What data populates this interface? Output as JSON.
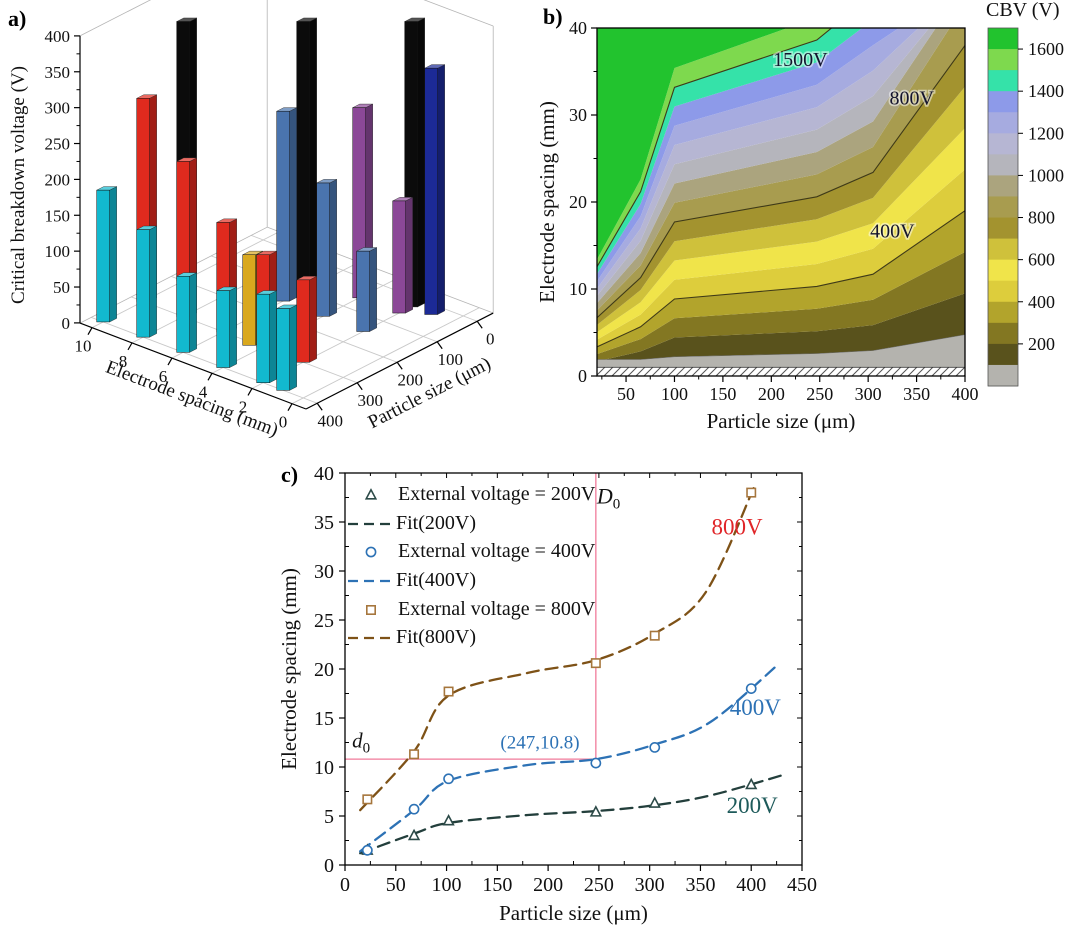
{
  "panels": {
    "a": {
      "label": "a)"
    },
    "b": {
      "label": "b)"
    },
    "c": {
      "label": "c)"
    }
  },
  "chart_data": [
    {
      "type": "bar",
      "subtype": "bar3d",
      "zlabel": "Critical breakdown voltage (V)",
      "xlabel": "Electrode spacing (mm)",
      "ylabel": "Particle size (μm)",
      "zlim": [
        0,
        400
      ],
      "z_ticks": [
        0,
        50,
        100,
        150,
        200,
        250,
        300,
        350,
        400
      ],
      "spacing_ticks": [
        0,
        2,
        4,
        6,
        8,
        10
      ],
      "particle_ticks": [
        400,
        300,
        200,
        100,
        0
      ],
      "series": [
        {
          "name": "bars-cyan",
          "color": "#12b9cf",
          "points": [
            [
              10,
              400,
              185
            ],
            [
              8,
              400,
              130
            ],
            [
              6,
              400,
              65
            ],
            [
              4,
              400,
              45
            ],
            [
              2,
              400,
              40
            ],
            [
              1,
              400,
              20
            ]
          ]
        },
        {
          "name": "bars-red",
          "color": "#df2a1e",
          "points": [
            [
              10,
              300,
              313
            ],
            [
              8,
              300,
              225
            ],
            [
              6,
              300,
              140
            ],
            [
              4,
              300,
              95
            ],
            [
              2,
              300,
              60
            ]
          ]
        },
        {
          "name": "bars-yellow",
          "color": "#d9a81e",
          "points": [
            [
              4.5,
              310,
              95
            ]
          ]
        },
        {
          "name": "bars-black",
          "color": "#0b0b0b",
          "points": [
            [
              10,
              200,
              420
            ],
            [
              6,
              100,
              420
            ],
            [
              2,
              30,
              420
            ]
          ]
        },
        {
          "name": "bars-steelblue",
          "color": "#4a74ae",
          "points": [
            [
              6,
              150,
              295
            ],
            [
              4,
              150,
              195
            ],
            [
              2,
              150,
              100
            ]
          ]
        },
        {
          "name": "bars-purple",
          "color": "#8b4897",
          "points": [
            [
              4,
              60,
              300
            ],
            [
              2,
              60,
              170
            ]
          ]
        },
        {
          "name": "bars-navy",
          "color": "#1c2a96",
          "points": [
            [
              1,
              30,
              355
            ]
          ]
        }
      ]
    },
    {
      "type": "heatmap",
      "subtype": "filled-contour",
      "xlabel": "Particle size (μm)",
      "ylabel": "Electrode spacing (mm)",
      "xlim": [
        20,
        400
      ],
      "ylim": [
        0,
        40
      ],
      "x_ticks": [
        50,
        100,
        150,
        200,
        250,
        300,
        350,
        400
      ],
      "y_ticks": [
        0,
        10,
        20,
        30,
        40
      ],
      "base_contour_800V": [
        [
          20,
          6.7
        ],
        [
          65,
          11.3
        ],
        [
          100,
          17.7
        ],
        [
          247,
          20.6
        ],
        [
          305,
          23.4
        ],
        [
          400,
          38.0
        ]
      ],
      "level_step": 100,
      "band_colors": {
        "0": "#b4b3ae",
        "100": "#59521c",
        "200": "#837722",
        "300": "#b2a42c",
        "400": "#ddcd3c",
        "500": "#f0e44a",
        "600": "#cfc13b",
        "700": "#a3932f",
        "800": "#a89c4f",
        "900": "#aba47e",
        "1000": "#b5b5bc",
        "1100": "#b6b6d3",
        "1200": "#a6abe0",
        "1300": "#8d9ae9",
        "1400": "#35e2a9",
        "1500": "#7ed94e",
        "1600": "#22c32e"
      },
      "labeled_contours": [
        {
          "level": 1500,
          "text": "1500V",
          "x": 230,
          "y": 36.3
        },
        {
          "level": 800,
          "text": "800V",
          "x": 345,
          "y": 31.9
        },
        {
          "level": 400,
          "text": "400V",
          "x": 325,
          "y": 16.6
        }
      ],
      "hatch_band": [
        0,
        1
      ],
      "colorbar": {
        "title": "CBV (V)",
        "max": 1700,
        "min": 0,
        "ticks": [
          200,
          400,
          600,
          800,
          1000,
          1200,
          1400,
          1600
        ]
      }
    },
    {
      "type": "scatter",
      "xlabel": "Particle size (μm)",
      "ylabel": "Electrode spacing (mm)",
      "xlim": [
        0,
        450
      ],
      "ylim": [
        0,
        40
      ],
      "x_ticks": [
        0,
        50,
        100,
        150,
        200,
        250,
        300,
        350,
        400,
        450
      ],
      "y_ticks": [
        0,
        5,
        10,
        15,
        20,
        25,
        30,
        35,
        40
      ],
      "series": [
        {
          "name": "External voltage = 200V",
          "kind": "markers",
          "marker": "triangle",
          "color": "#2c4a48",
          "points": [
            [
              22,
              1.5
            ],
            [
              68,
              3.0
            ],
            [
              102,
              4.5
            ],
            [
              247,
              5.4
            ],
            [
              305,
              6.3
            ],
            [
              400,
              8.2
            ]
          ]
        },
        {
          "name": "Fit(200V)",
          "kind": "fit",
          "color": "#233f3c",
          "points": [
            [
              15,
              1.2
            ],
            [
              68,
              3.2
            ],
            [
              102,
              4.3
            ],
            [
              180,
              5.1
            ],
            [
              247,
              5.5
            ],
            [
              305,
              6.1
            ],
            [
              360,
              7.1
            ],
            [
              432,
              9.2
            ]
          ]
        },
        {
          "name": "External voltage = 400V",
          "kind": "markers",
          "marker": "circle",
          "color": "#2d72b5",
          "points": [
            [
              22,
              1.5
            ],
            [
              68,
              5.7
            ],
            [
              102,
              8.8
            ],
            [
              247,
              10.4
            ],
            [
              305,
              12.0
            ],
            [
              400,
              18.0
            ]
          ]
        },
        {
          "name": "Fit(400V)",
          "kind": "fit",
          "color": "#2d72b5",
          "points": [
            [
              15,
              1.4
            ],
            [
              68,
              5.6
            ],
            [
              102,
              8.6
            ],
            [
              180,
              10.2
            ],
            [
              247,
              10.8
            ],
            [
              305,
              12.3
            ],
            [
              360,
              14.6
            ],
            [
              428,
              20.6
            ]
          ]
        },
        {
          "name": "External voltage = 800V",
          "kind": "markers",
          "marker": "square",
          "color": "#a6763d",
          "points": [
            [
              22,
              6.7
            ],
            [
              68,
              11.3
            ],
            [
              102,
              17.7
            ],
            [
              247,
              20.6
            ],
            [
              305,
              23.4
            ],
            [
              400,
              38.0
            ]
          ]
        },
        {
          "name": "Fit(800V)",
          "kind": "fit",
          "color": "#7e5217",
          "points": [
            [
              15,
              5.6
            ],
            [
              68,
              11.6
            ],
            [
              102,
              17.3
            ],
            [
              180,
              19.6
            ],
            [
              247,
              20.9
            ],
            [
              305,
              23.6
            ],
            [
              355,
              27.8
            ],
            [
              403,
              38.6
            ]
          ]
        }
      ],
      "legend": [
        "External voltage = 200V",
        "Fit(200V)",
        "External voltage = 400V",
        "Fit(400V)",
        "External voltage = 800V",
        "Fit(800V)"
      ],
      "curve_labels": [
        {
          "text": "800V",
          "color": "#e02528",
          "x": 386,
          "y": 33.7
        },
        {
          "text": "400V",
          "color": "#2d72b5",
          "x": 404,
          "y": 15.3
        },
        {
          "text": "200V",
          "color": "#1d5a5a",
          "x": 401,
          "y": 5.3
        }
      ],
      "annotations": {
        "crosshair_point": [
          247,
          10.8
        ],
        "point_label": "(247,10.8)",
        "point_label_pos": [
          192,
          11.9
        ],
        "D0_main": "D",
        "D0_sub": "0",
        "D0_pos": [
          248,
          36.9
        ],
        "d0_main": "d",
        "d0_sub": "0",
        "d0_pos": [
          7,
          12.0
        ],
        "crosshair_color": "#f07a9a",
        "point_label_color": "#2d72b5"
      }
    }
  ]
}
